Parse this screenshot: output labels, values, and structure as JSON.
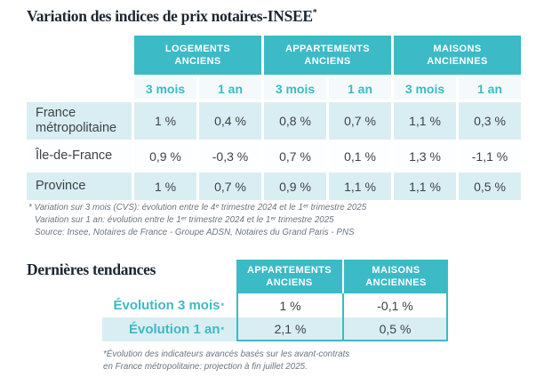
{
  "colors": {
    "teal": "#3cbac6",
    "light_blue": "#d9eef2",
    "title_navy": "#1b2731",
    "body_text": "#3d4347",
    "footnote_gray": "#6b7682"
  },
  "section1": {
    "title": "Variation des indices de prix notaires-INSEE",
    "title_sup": "*",
    "table": {
      "group_headers": [
        "LOGEMENTS ANCIENS",
        "APPARTEMENTS ANCIENS",
        "MAISONS ANCIENNES"
      ],
      "period_headers": [
        "3 mois",
        "1 an",
        "3 mois",
        "1 an",
        "3 mois",
        "1 an"
      ],
      "rows": [
        {
          "label": "France métropolitaine",
          "values": [
            "1 %",
            "0,4 %",
            "0,8 %",
            "0,7 %",
            "1,1 %",
            "0,3 %"
          ]
        },
        {
          "label": "Île-de-France",
          "values": [
            "0,9 %",
            "-0,3 %",
            "0,7 %",
            "0,1 %",
            "1,3 %",
            "-1,1 %"
          ]
        },
        {
          "label": "Province",
          "values": [
            "1 %",
            "0,7 %",
            "0,9 %",
            "1,1 %",
            "1,1 %",
            "0,5 %"
          ]
        }
      ]
    },
    "footnotes": [
      "* Variation sur 3 mois (CVS): évolution entre le 4ᵉ trimestre 2024 et le 1ᵉʳ trimestre 2025",
      "Variation sur 1 an: évolution entre le 1ᵉʳ trimestre 2024 et le 1ᵉʳ trimestre 2025",
      "Source: Insee, Notaires de France - Groupe ADSN, Notaires du Grand Paris - PNS"
    ]
  },
  "section2": {
    "title": "Dernières tendances",
    "table": {
      "column_headers": [
        "APPARTEMENTS ANCIENS",
        "MAISONS ANCIENNES"
      ],
      "rows": [
        {
          "label": "Évolution 3 mois",
          "label_sup": "*",
          "values": [
            "1 %",
            "-0,1 %"
          ]
        },
        {
          "label": "Évolution 1 an",
          "label_sup": "*",
          "values": [
            "2,1 %",
            "0,5 %"
          ]
        }
      ]
    },
    "footnotes": [
      "*Évolution des indicateurs avancés basés sur les avant-contrats",
      "en France métropolitaine: projection à fin juillet 2025."
    ]
  }
}
